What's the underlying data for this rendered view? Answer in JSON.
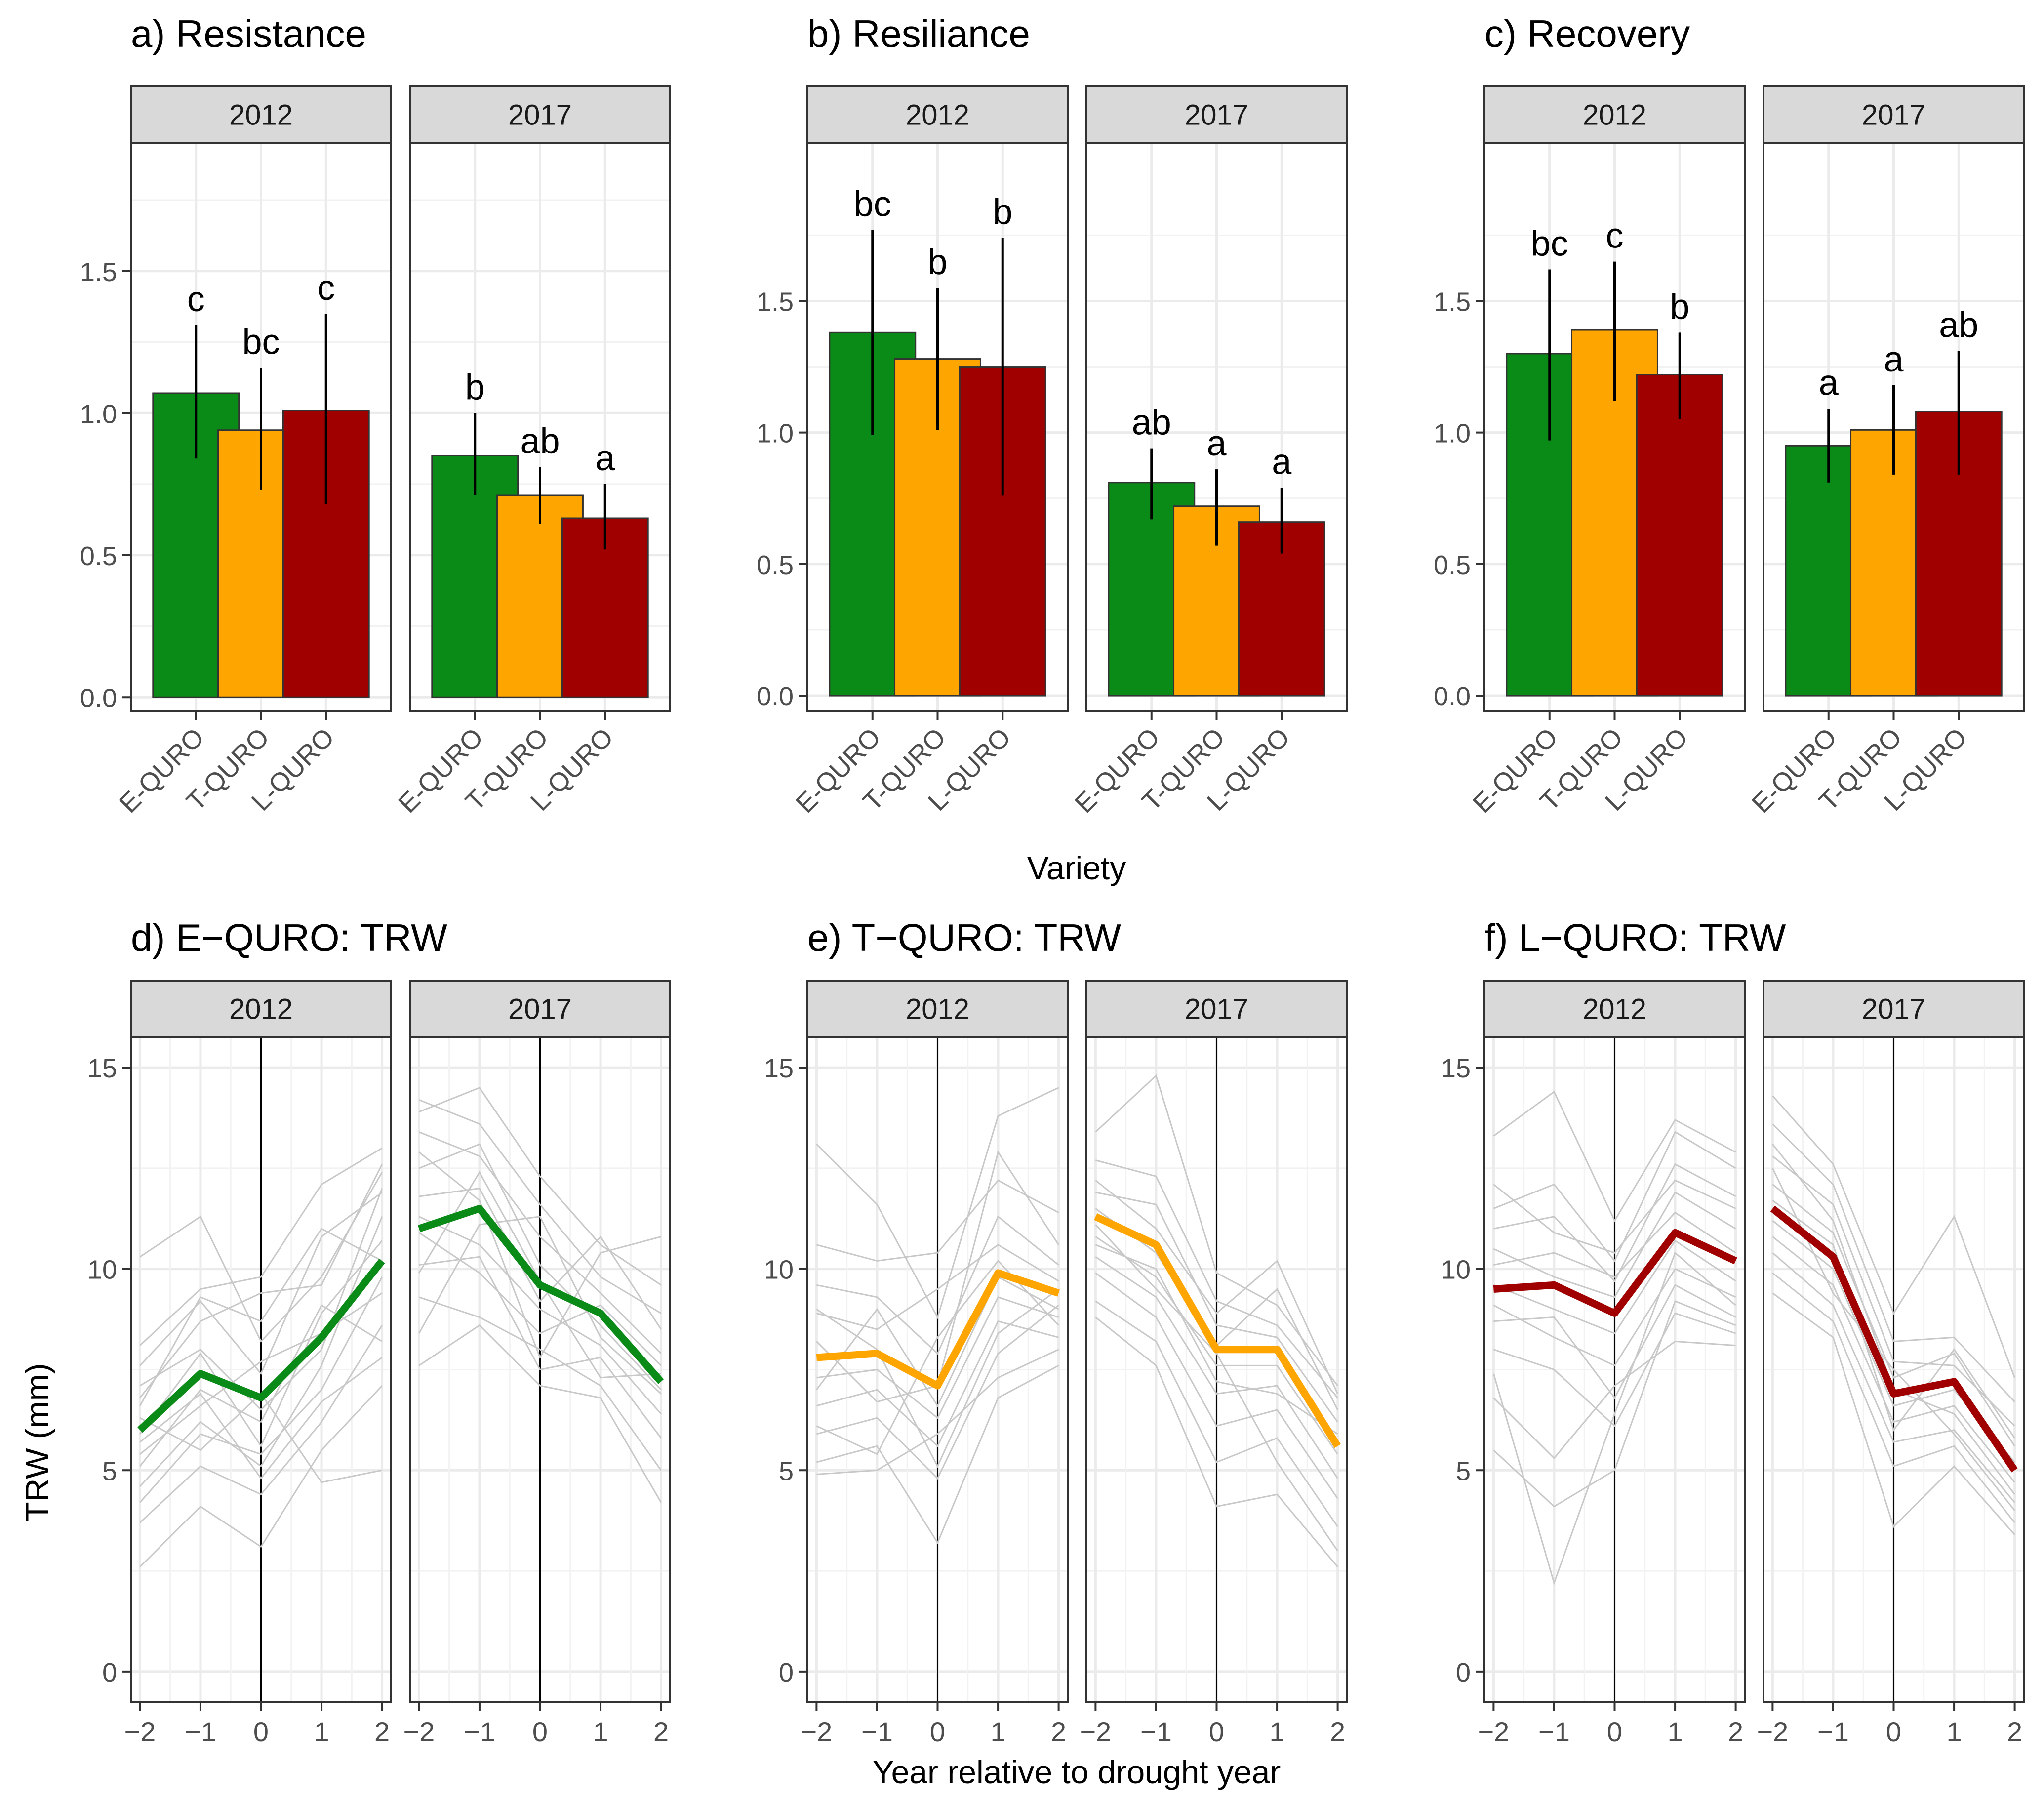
{
  "figure": {
    "x_axis_title_top": "Variety",
    "x_axis_title_bottom": "Year relative to drought year",
    "y_axis_title_bottom": "TRW (mm)"
  },
  "colors": {
    "E-QURO": "#0a8a17",
    "T-QURO": "#ffa500",
    "L-QURO": "#a00000",
    "strip_bg": "#d9d9d9",
    "grid": "#ebebeb",
    "tree_lines": "#c8c8c8"
  },
  "chart_data": [
    {
      "type": "bar",
      "title": "a) Resistance",
      "ylim": [
        -0.05,
        1.95
      ],
      "yticks": [
        0.0,
        0.5,
        1.0,
        1.5
      ],
      "ytick_labels": [
        "0.0",
        "0.5",
        "1.0",
        "1.5"
      ],
      "categories": [
        "E-QURO",
        "T-QURO",
        "L-QURO"
      ],
      "facets": [
        {
          "label": "2012",
          "values": [
            1.07,
            0.94,
            1.01
          ],
          "err_low": [
            0.84,
            0.73,
            0.68
          ],
          "err_high": [
            1.31,
            1.16,
            1.35
          ],
          "letters": [
            "c",
            "bc",
            "c"
          ]
        },
        {
          "label": "2017",
          "values": [
            0.85,
            0.71,
            0.63
          ],
          "err_low": [
            0.71,
            0.61,
            0.52
          ],
          "err_high": [
            1.0,
            0.81,
            0.75
          ],
          "letters": [
            "b",
            "ab",
            "a"
          ]
        }
      ]
    },
    {
      "type": "bar",
      "title": "b) Resiliance",
      "ylim": [
        -0.06,
        2.1
      ],
      "yticks": [
        0.0,
        0.5,
        1.0,
        1.5
      ],
      "ytick_labels": [
        "0.0",
        "0.5",
        "1.0",
        "1.5"
      ],
      "categories": [
        "E-QURO",
        "T-QURO",
        "L-QURO"
      ],
      "facets": [
        {
          "label": "2012",
          "values": [
            1.38,
            1.28,
            1.25
          ],
          "err_low": [
            0.99,
            1.01,
            0.76
          ],
          "err_high": [
            1.77,
            1.55,
            1.74
          ],
          "letters": [
            "bc",
            "b",
            "b"
          ]
        },
        {
          "label": "2017",
          "values": [
            0.81,
            0.72,
            0.66
          ],
          "err_low": [
            0.67,
            0.57,
            0.54
          ],
          "err_high": [
            0.94,
            0.86,
            0.79
          ],
          "letters": [
            "ab",
            "a",
            "a"
          ]
        }
      ]
    },
    {
      "type": "bar",
      "title": "c) Recovery",
      "ylim": [
        -0.06,
        2.1
      ],
      "yticks": [
        0.0,
        0.5,
        1.0,
        1.5
      ],
      "ytick_labels": [
        "0.0",
        "0.5",
        "1.0",
        "1.5"
      ],
      "categories": [
        "E-QURO",
        "T-QURO",
        "L-QURO"
      ],
      "facets": [
        {
          "label": "2012",
          "values": [
            1.3,
            1.39,
            1.22
          ],
          "err_low": [
            0.97,
            1.12,
            1.05
          ],
          "err_high": [
            1.62,
            1.65,
            1.38
          ],
          "letters": [
            "bc",
            "c",
            "b"
          ]
        },
        {
          "label": "2017",
          "values": [
            0.95,
            1.01,
            1.08
          ],
          "err_low": [
            0.81,
            0.84,
            0.84
          ],
          "err_high": [
            1.09,
            1.18,
            1.31
          ],
          "letters": [
            "a",
            "a",
            "ab"
          ]
        }
      ]
    },
    {
      "type": "line",
      "title": "d) E−QURO: TRW",
      "variety": "E-QURO",
      "xlim": [
        -2.15,
        2.15
      ],
      "ylim": [
        -0.75,
        15.75
      ],
      "x": [
        -2,
        -1,
        0,
        1,
        2
      ],
      "xtick_labels": [
        "−2",
        "−1",
        "0",
        "1",
        "2"
      ],
      "yticks": [
        0,
        5,
        10,
        15
      ],
      "ytick_labels": [
        "0",
        "5",
        "10",
        "15"
      ],
      "facets": [
        {
          "label": "2012",
          "mean": [
            6.0,
            7.4,
            6.8,
            8.3,
            10.2
          ],
          "trees": [
            [
              10.3,
              11.3,
              8.2,
              9.8,
              12.4
            ],
            [
              8.1,
              9.5,
              9.8,
              12.1,
              13.0
            ],
            [
              7.6,
              9.2,
              7.4,
              10.8,
              11.9
            ],
            [
              6.8,
              8.7,
              9.4,
              9.6,
              12.6
            ],
            [
              5.9,
              7.9,
              5.6,
              8.9,
              10.7
            ],
            [
              5.4,
              6.6,
              7.7,
              8.4,
              9.4
            ],
            [
              4.6,
              6.2,
              5.1,
              7.6,
              11.3
            ],
            [
              3.7,
              5.1,
              4.4,
              6.2,
              8.6
            ],
            [
              2.6,
              4.1,
              3.1,
              5.5,
              7.1
            ],
            [
              6.3,
              5.5,
              6.9,
              4.7,
              5.0
            ],
            [
              5.1,
              7.0,
              6.2,
              9.1,
              8.2
            ],
            [
              6.6,
              9.3,
              8.7,
              11.0,
              10.2
            ],
            [
              4.2,
              5.9,
              5.4,
              7.0,
              9.8
            ],
            [
              7.1,
              8.0,
              6.5,
              8.0,
              12.0
            ],
            [
              5.7,
              6.9,
              4.8,
              6.7,
              7.8
            ]
          ]
        },
        {
          "label": "2017",
          "mean": [
            11.0,
            11.5,
            9.6,
            8.9,
            7.2
          ],
          "trees": [
            [
              14.2,
              13.6,
              11.6,
              9.8,
              8.9
            ],
            [
              13.9,
              14.5,
              12.3,
              10.6,
              9.6
            ],
            [
              13.4,
              12.8,
              10.8,
              9.4,
              7.9
            ],
            [
              12.5,
              13.1,
              10.1,
              8.6,
              7.0
            ],
            [
              11.8,
              12.0,
              9.2,
              10.8,
              8.5
            ],
            [
              11.3,
              10.6,
              9.0,
              8.1,
              6.4
            ],
            [
              10.9,
              9.9,
              8.4,
              9.1,
              7.6
            ],
            [
              10.1,
              10.3,
              7.5,
              7.8,
              5.8
            ],
            [
              9.3,
              8.8,
              8.0,
              7.1,
              5.0
            ],
            [
              7.6,
              8.6,
              7.1,
              6.8,
              4.2
            ],
            [
              8.4,
              11.1,
              11.3,
              8.3,
              6.9
            ],
            [
              12.9,
              11.7,
              7.8,
              10.4,
              10.8
            ],
            [
              9.9,
              12.4,
              9.7,
              7.3,
              7.4
            ]
          ]
        }
      ]
    },
    {
      "type": "line",
      "title": "e) T−QURO: TRW",
      "variety": "T-QURO",
      "xlim": [
        -2.15,
        2.15
      ],
      "ylim": [
        -0.75,
        15.75
      ],
      "x": [
        -2,
        -1,
        0,
        1,
        2
      ],
      "xtick_labels": [
        "−2",
        "−1",
        "0",
        "1",
        "2"
      ],
      "yticks": [
        0,
        5,
        10,
        15
      ],
      "ytick_labels": [
        "0",
        "5",
        "10",
        "15"
      ],
      "facets": [
        {
          "label": "2012",
          "mean": [
            7.8,
            7.9,
            7.1,
            9.9,
            9.4
          ],
          "trees": [
            [
              13.1,
              11.6,
              8.8,
              13.8,
              14.5
            ],
            [
              10.6,
              10.2,
              10.4,
              12.2,
              11.4
            ],
            [
              9.6,
              9.3,
              7.9,
              11.3,
              10.1
            ],
            [
              8.9,
              8.5,
              9.5,
              10.6,
              9.7
            ],
            [
              7.3,
              7.5,
              6.3,
              9.3,
              8.8
            ],
            [
              6.6,
              7.0,
              5.6,
              8.7,
              8.3
            ],
            [
              5.9,
              6.3,
              4.8,
              7.9,
              9.1
            ],
            [
              5.2,
              5.6,
              3.2,
              6.8,
              7.6
            ],
            [
              4.9,
              5.0,
              5.9,
              7.3,
              8.0
            ],
            [
              8.2,
              6.7,
              7.1,
              12.9,
              10.6
            ],
            [
              7.0,
              9.0,
              6.6,
              9.8,
              9.0
            ],
            [
              6.1,
              5.4,
              8.3,
              10.2,
              8.6
            ],
            [
              9.0,
              8.0,
              5.1,
              8.4,
              9.5
            ]
          ]
        },
        {
          "label": "2017",
          "mean": [
            11.3,
            10.6,
            8.0,
            8.0,
            5.6
          ],
          "trees": [
            [
              13.4,
              14.8,
              9.9,
              9.1,
              7.1
            ],
            [
              12.7,
              12.3,
              9.2,
              8.6,
              6.8
            ],
            [
              11.9,
              11.6,
              8.6,
              8.3,
              6.2
            ],
            [
              11.5,
              10.4,
              8.1,
              9.5,
              6.5
            ],
            [
              10.8,
              9.8,
              7.6,
              7.6,
              5.4
            ],
            [
              10.3,
              9.3,
              6.9,
              7.1,
              4.8
            ],
            [
              9.9,
              8.8,
              6.1,
              6.5,
              4.3
            ],
            [
              9.2,
              8.2,
              5.2,
              5.8,
              3.6
            ],
            [
              8.8,
              7.6,
              4.1,
              4.4,
              2.6
            ],
            [
              12.2,
              11.0,
              8.9,
              10.2,
              6.9
            ],
            [
              10.6,
              10.0,
              7.2,
              6.9,
              5.9
            ],
            [
              11.1,
              9.5,
              7.9,
              5.2,
              3.0
            ]
          ]
        }
      ]
    },
    {
      "type": "line",
      "title": "f) L−QURO: TRW",
      "variety": "L-QURO",
      "xlim": [
        -2.15,
        2.15
      ],
      "ylim": [
        -0.75,
        15.75
      ],
      "x": [
        -2,
        -1,
        0,
        1,
        2
      ],
      "xtick_labels": [
        "−2",
        "−1",
        "0",
        "1",
        "2"
      ],
      "yticks": [
        0,
        5,
        10,
        15
      ],
      "ytick_labels": [
        "0",
        "5",
        "10",
        "15"
      ],
      "facets": [
        {
          "label": "2012",
          "mean": [
            9.5,
            9.6,
            8.9,
            10.9,
            10.2
          ],
          "trees": [
            [
              13.3,
              14.4,
              11.2,
              13.7,
              12.9
            ],
            [
              11.5,
              12.1,
              10.2,
              13.4,
              12.5
            ],
            [
              11.0,
              11.3,
              9.7,
              12.6,
              11.8
            ],
            [
              10.5,
              9.8,
              9.3,
              11.9,
              11.0
            ],
            [
              10.1,
              10.4,
              9.8,
              11.4,
              10.4
            ],
            [
              9.6,
              9.0,
              8.4,
              10.7,
              9.7
            ],
            [
              9.1,
              8.3,
              7.6,
              10.0,
              9.3
            ],
            [
              8.7,
              8.8,
              6.8,
              9.6,
              8.8
            ],
            [
              8.0,
              7.5,
              6.1,
              8.9,
              8.4
            ],
            [
              6.8,
              5.3,
              7.1,
              8.2,
              8.1
            ],
            [
              5.5,
              4.1,
              5.0,
              9.2,
              8.6
            ],
            [
              7.4,
              2.2,
              6.4,
              10.4,
              9.1
            ],
            [
              12.1,
              10.9,
              10.4,
              12.2,
              11.5
            ]
          ]
        },
        {
          "label": "2017",
          "mean": [
            11.5,
            10.3,
            6.9,
            7.2,
            5.0
          ],
          "trees": [
            [
              14.3,
              12.6,
              8.9,
              11.3,
              7.3
            ],
            [
              13.6,
              12.1,
              8.2,
              8.3,
              6.7
            ],
            [
              12.8,
              11.6,
              7.7,
              7.6,
              6.1
            ],
            [
              12.1,
              10.9,
              7.3,
              7.9,
              5.6
            ],
            [
              11.2,
              10.0,
              6.6,
              7.0,
              5.2
            ],
            [
              10.8,
              9.6,
              6.2,
              6.6,
              4.7
            ],
            [
              10.4,
              9.1,
              5.7,
              6.0,
              4.2
            ],
            [
              9.9,
              8.7,
              5.1,
              5.6,
              3.7
            ],
            [
              9.4,
              8.3,
              3.6,
              5.1,
              3.4
            ],
            [
              13.1,
              11.2,
              7.0,
              6.4,
              4.4
            ],
            [
              11.7,
              10.6,
              6.0,
              8.0,
              5.8
            ],
            [
              12.5,
              9.4,
              7.5,
              5.9,
              4.0
            ]
          ]
        }
      ]
    }
  ]
}
